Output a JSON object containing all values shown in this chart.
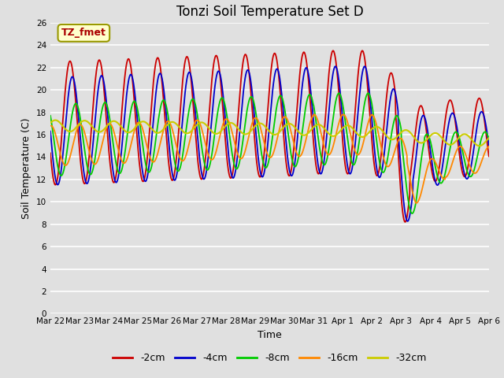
{
  "title": "Tonzi Soil Temperature Set D",
  "xlabel": "Time",
  "ylabel": "Soil Temperature (C)",
  "ylim": [
    0,
    26
  ],
  "yticks": [
    0,
    2,
    4,
    6,
    8,
    10,
    12,
    14,
    16,
    18,
    20,
    22,
    24,
    26
  ],
  "series_labels": [
    "-2cm",
    "-4cm",
    "-8cm",
    "-16cm",
    "-32cm"
  ],
  "series_colors": [
    "#cc0000",
    "#0000cc",
    "#00cc00",
    "#ff8800",
    "#cccc00"
  ],
  "annotation_text": "TZ_fmet",
  "annotation_color": "#aa0000",
  "annotation_bg": "#ffffcc",
  "annotation_border": "#999900",
  "background_color": "#e0e0e0",
  "plot_bg": "#e0e0e0",
  "grid_color": "#ffffff",
  "title_fontsize": 12,
  "axis_label_fontsize": 9,
  "tick_fontsize": 7.5,
  "legend_fontsize": 9,
  "x_start_day": 22,
  "x_end_day": 37,
  "x_tick_days": [
    22,
    23,
    24,
    25,
    26,
    27,
    28,
    29,
    30,
    31,
    32,
    33,
    34,
    35,
    36,
    37
  ],
  "x_tick_labels": [
    "Mar 22",
    "Mar 23",
    "Mar 24",
    "Mar 25",
    "Mar 26",
    "Mar 27",
    "Mar 28",
    "Mar 29",
    "Mar 30",
    "Mar 31",
    "Apr 1",
    "Apr 2",
    "Apr 3",
    "Apr 4",
    "Apr 5",
    "Apr 6"
  ]
}
